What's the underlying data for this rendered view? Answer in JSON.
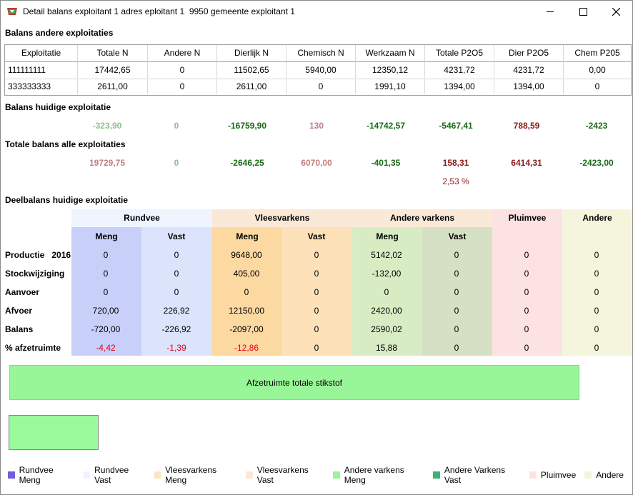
{
  "window": {
    "title": "Detail balans exploitant 1 adres eploitant 1  9950 gemeente exploitant 1",
    "minimize": "—",
    "maximize": "☐",
    "close": "✕"
  },
  "sections": {
    "andere": "Balans andere exploitaties",
    "huidige": "Balans huidige exploitatie",
    "totale": "Totale balans alle exploitaties",
    "deelbalans": "Deelbalans huidige exploitatie"
  },
  "grid": {
    "headers": [
      "Exploitatie",
      "Totale N",
      "Andere N",
      "Dierlijk N",
      "Chemisch N",
      "Werkzaam N",
      "Totale P2O5",
      "Dier P2O5",
      "Chem P205"
    ],
    "rows": [
      [
        "111111111",
        "17442,65",
        "0",
        "11502,65",
        "5940,00",
        "12350,12",
        "4231,72",
        "4231,72",
        "0,00"
      ],
      [
        "333333333",
        "2611,00",
        "0",
        "2611,00",
        "0",
        "1991,10",
        "1394,00",
        "1394,00",
        "0"
      ]
    ]
  },
  "huidige": {
    "values": [
      "-323,90",
      "0",
      "-16759,90",
      "130",
      "-14742,57",
      "-5467,41",
      "788,59",
      "-2423"
    ],
    "colors": [
      "green-light",
      "green-light",
      "green-dark",
      "pink",
      "green-dark",
      "green-dark",
      "maroon",
      "green-dark"
    ]
  },
  "totale": {
    "values": [
      "19729,75",
      "0",
      "-2646,25",
      "6070,00",
      "-401,35",
      "158,31",
      "6414,31",
      "-2423,00"
    ],
    "colors": [
      "pink",
      "green-light",
      "green-dark",
      "pink",
      "green-dark",
      "maroon",
      "maroon",
      "green-dark"
    ],
    "percent": "2,53 %"
  },
  "deel": {
    "groups": [
      "Rundvee",
      "Vleesvarkens",
      "Andere varkens",
      "Pluimvee",
      "Andere"
    ],
    "subheaders": [
      "Meng",
      "Vast",
      "Meng",
      "Vast",
      "Meng",
      "Vast"
    ],
    "rowlabels": [
      "Productie",
      "Stockwijziging",
      "Aanvoer",
      "Afvoer",
      "Balans",
      "% afzetruimte"
    ],
    "year": "2016",
    "rows": [
      [
        "0",
        "0",
        "9648,00",
        "0",
        "5142,02",
        "0",
        "0",
        "0"
      ],
      [
        "0",
        "0",
        "405,00",
        "0",
        "-132,00",
        "0",
        "0",
        "0"
      ],
      [
        "0",
        "0",
        "0",
        "0",
        "0",
        "0",
        "0",
        "0"
      ],
      [
        "720,00",
        "226,92",
        "12150,00",
        "0",
        "2420,00",
        "0",
        "0",
        "0"
      ],
      [
        "-720,00",
        "-226,92",
        "-2097,00",
        "0",
        "2590,02",
        "0",
        "0",
        "0"
      ],
      [
        "-4,42",
        "-1,39",
        "-12,86",
        "0",
        "15,88",
        "0",
        "0",
        "0"
      ]
    ],
    "colors": {
      "rundvee_meng": "#c8d0fa",
      "rundvee_vast": "#dce4fb",
      "vlees_meng": "#fcd9a0",
      "vlees_vast": "#fde2b9",
      "andere_meng": "#d8ecc4",
      "andere_vast": "#d6e0c4",
      "pluimvee": "#fde2e2",
      "andere": "#f5f5dd"
    }
  },
  "bar_label": "Afzetruimte totale stikstof",
  "legend": [
    {
      "label": "Rundvee Meng",
      "color": "#6f5fd8"
    },
    {
      "label": "Rundvee Vast",
      "color": "#eef4ff"
    },
    {
      "label": "Vleesvarkens Meng",
      "color": "#fde4c4"
    },
    {
      "label": "Vleesvarkens Vast",
      "color": "#fbe9d8"
    },
    {
      "label": "Andere varkens Meng",
      "color": "#98f598"
    },
    {
      "label": "Andere Varkens Vast",
      "color": "#3cb371"
    },
    {
      "label": "Pluimvee",
      "color": "#fde2e2"
    },
    {
      "label": "Andere",
      "color": "#f5f5dc"
    }
  ]
}
